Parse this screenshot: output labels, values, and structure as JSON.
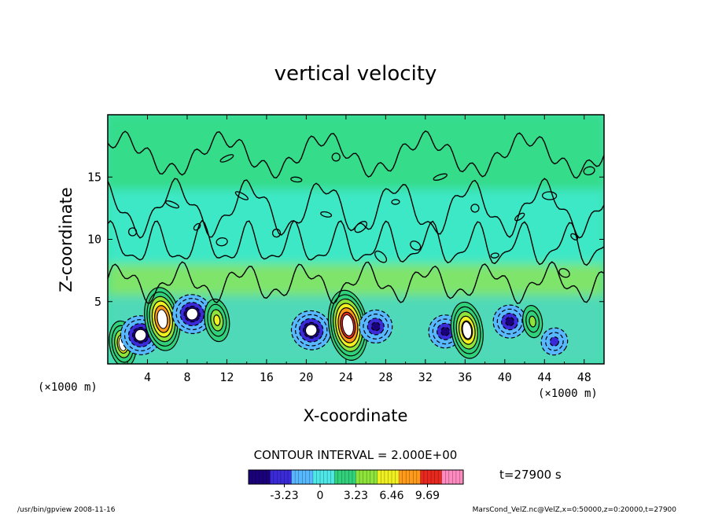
{
  "chart_data": {
    "type": "heatmap",
    "title": "vertical velocity",
    "xlabel": "X-coordinate",
    "ylabel": "Z-coordinate",
    "x_unit_left": "(×1000 m)",
    "x_unit_right": "(×1000 m)",
    "xlim": [
      0,
      50
    ],
    "ylim": [
      0,
      20
    ],
    "x_ticks": [
      "4",
      "8",
      "12",
      "16",
      "20",
      "24",
      "28",
      "32",
      "36",
      "40",
      "44",
      "48"
    ],
    "y_ticks": [
      "5",
      "10",
      "15"
    ],
    "contour_interval_label": "CONTOUR INTERVAL = 2.000E+00",
    "time_label": "t=27900 s",
    "colorbar": {
      "range": [
        -6.46,
        12.92
      ],
      "tick_labels": [
        "-3.23",
        "0",
        "3.23",
        "6.46",
        "9.69"
      ],
      "tick_values": [
        -3.23,
        0,
        3.23,
        6.46,
        9.69
      ],
      "colors": [
        "#1a007a",
        "#3a2ad8",
        "#58b8ff",
        "#4ee8e8",
        "#31d17c",
        "#8ee43a",
        "#f0f020",
        "#ff9a1a",
        "#e8281e",
        "#ff8ac0"
      ]
    },
    "features": [
      {
        "kind": "updraft",
        "x": 1.5,
        "z": 1.6,
        "w": 7
      },
      {
        "kind": "downdraft",
        "x": 3.3,
        "z": 2.3,
        "w": -7
      },
      {
        "kind": "updraft",
        "x": 5.5,
        "z": 3.6,
        "w": 12
      },
      {
        "kind": "downdraft",
        "x": 8.5,
        "z": 4.0,
        "w": -7
      },
      {
        "kind": "updraft",
        "x": 11.0,
        "z": 3.5,
        "w": 6
      },
      {
        "kind": "downdraft",
        "x": 20.5,
        "z": 2.7,
        "w": -7
      },
      {
        "kind": "updraft",
        "x": 24.2,
        "z": 3.1,
        "w": 14
      },
      {
        "kind": "downdraft",
        "x": 27.0,
        "z": 3.0,
        "w": -5
      },
      {
        "kind": "downdraft",
        "x": 34.0,
        "z": 2.6,
        "w": -5
      },
      {
        "kind": "updraft",
        "x": 36.2,
        "z": 2.7,
        "w": 10
      },
      {
        "kind": "downdraft",
        "x": 40.5,
        "z": 3.4,
        "w": -5
      },
      {
        "kind": "updraft",
        "x": 42.8,
        "z": 3.4,
        "w": 3
      },
      {
        "kind": "downdraft",
        "x": 45.0,
        "z": 1.8,
        "w": -3
      }
    ]
  },
  "footer": {
    "left": "/usr/bin/gpview   2008-11-16",
    "right": "MarsCond_VelZ.nc@VelZ,x=0:50000,z=0:20000,t=27900"
  }
}
